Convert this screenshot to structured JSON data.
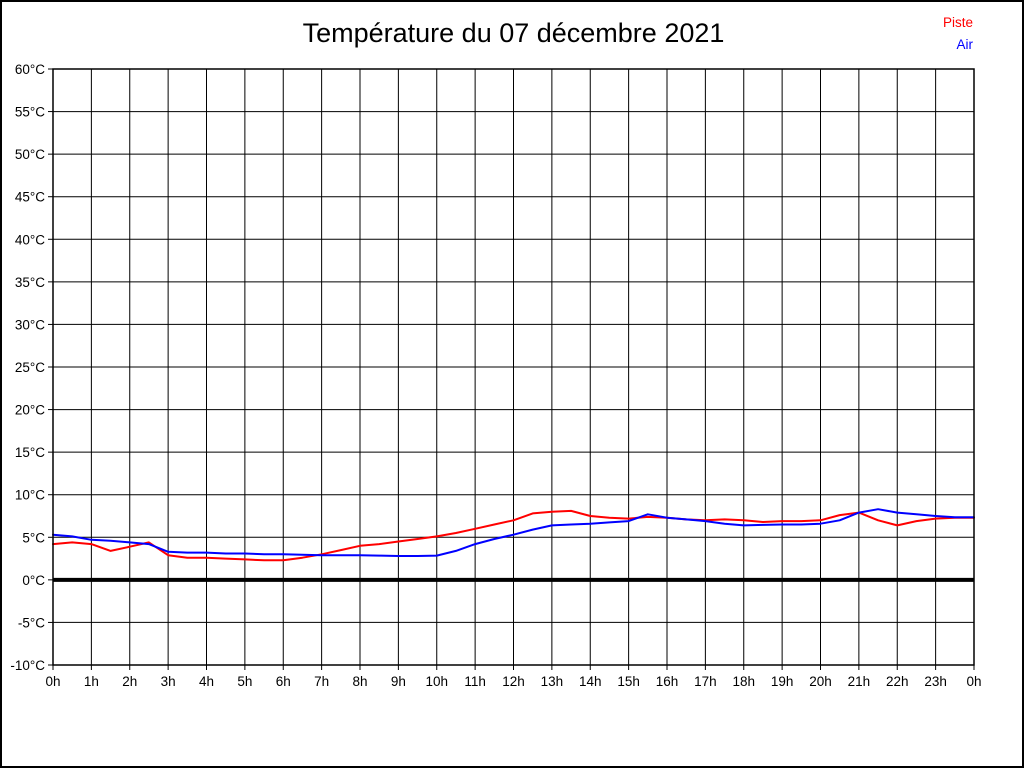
{
  "page": {
    "title": "Température du 07 décembre 2021",
    "background_color": "#ffffff",
    "border_color": "#000000"
  },
  "legend": {
    "position": "top-right",
    "items": [
      {
        "label": "Piste",
        "color": "#ff0000"
      },
      {
        "label": "Air",
        "color": "#0000ff"
      }
    ]
  },
  "axes": {
    "y_tick_labels": [
      "60°C",
      "55°C",
      "50°C",
      "45°C",
      "40°C",
      "35°C",
      "30°C",
      "25°C",
      "20°C",
      "15°C",
      "10°C",
      "5°C",
      "0°C",
      "-5°C",
      "-10°C"
    ],
    "y_tick_values": [
      60,
      55,
      50,
      45,
      40,
      35,
      30,
      25,
      20,
      15,
      10,
      5,
      0,
      -5,
      -10
    ],
    "x_tick_labels": [
      "0h",
      "1h",
      "2h",
      "3h",
      "4h",
      "5h",
      "6h",
      "7h",
      "8h",
      "9h",
      "10h",
      "11h",
      "12h",
      "13h",
      "14h",
      "15h",
      "16h",
      "17h",
      "18h",
      "19h",
      "20h",
      "21h",
      "22h",
      "23h",
      "0h"
    ],
    "x_tick_values": [
      0,
      1,
      2,
      3,
      4,
      5,
      6,
      7,
      8,
      9,
      10,
      11,
      12,
      13,
      14,
      15,
      16,
      17,
      18,
      19,
      20,
      21,
      22,
      23,
      24
    ]
  },
  "chart_data": {
    "type": "line",
    "title": "Température du 07 décembre 2021",
    "xlabel": "",
    "ylabel": "",
    "x_unit": "hours",
    "y_unit": "°C",
    "xlim": [
      0,
      24
    ],
    "ylim": [
      -10,
      60
    ],
    "grid": true,
    "gridline_color": "#000000",
    "zero_line": {
      "value": 0,
      "color": "#000000",
      "thick": true
    },
    "legend_position": "top-right",
    "x": [
      0,
      0.5,
      1,
      1.5,
      2,
      2.5,
      3,
      3.5,
      4,
      4.5,
      5,
      5.5,
      6,
      6.5,
      7,
      7.5,
      8,
      8.5,
      9,
      9.5,
      10,
      10.5,
      11,
      11.5,
      12,
      12.5,
      13,
      13.5,
      14,
      14.5,
      15,
      15.5,
      16,
      16.5,
      17,
      17.5,
      18,
      18.5,
      19,
      19.5,
      20,
      20.5,
      21,
      21.5,
      22,
      22.5,
      23,
      23.5,
      24
    ],
    "series": [
      {
        "name": "Piste",
        "color": "#ff0000",
        "values": [
          4.2,
          4.4,
          4.2,
          3.4,
          3.9,
          4.4,
          2.9,
          2.6,
          2.6,
          2.5,
          2.4,
          2.3,
          2.3,
          2.6,
          3.0,
          3.5,
          4.0,
          4.2,
          4.5,
          4.8,
          5.1,
          5.5,
          6.0,
          6.5,
          7.0,
          7.8,
          8.0,
          8.1,
          7.5,
          7.3,
          7.2,
          7.4,
          7.3,
          7.1,
          7.0,
          7.1,
          7.0,
          6.8,
          6.9,
          6.9,
          7.0,
          7.6,
          7.9,
          7.0,
          6.4,
          6.9,
          7.2,
          7.3,
          7.3
        ]
      },
      {
        "name": "Air",
        "color": "#0000ff",
        "values": [
          5.3,
          5.1,
          4.7,
          4.6,
          4.4,
          4.2,
          3.3,
          3.2,
          3.2,
          3.1,
          3.1,
          3.0,
          3.0,
          2.95,
          2.9,
          2.9,
          2.9,
          2.85,
          2.8,
          2.8,
          2.85,
          3.4,
          4.2,
          4.8,
          5.3,
          5.9,
          6.4,
          6.5,
          6.6,
          6.75,
          6.9,
          7.7,
          7.3,
          7.1,
          6.9,
          6.6,
          6.4,
          6.45,
          6.5,
          6.5,
          6.6,
          7.0,
          7.9,
          8.3,
          7.9,
          7.7,
          7.5,
          7.35,
          7.35
        ]
      }
    ]
  }
}
